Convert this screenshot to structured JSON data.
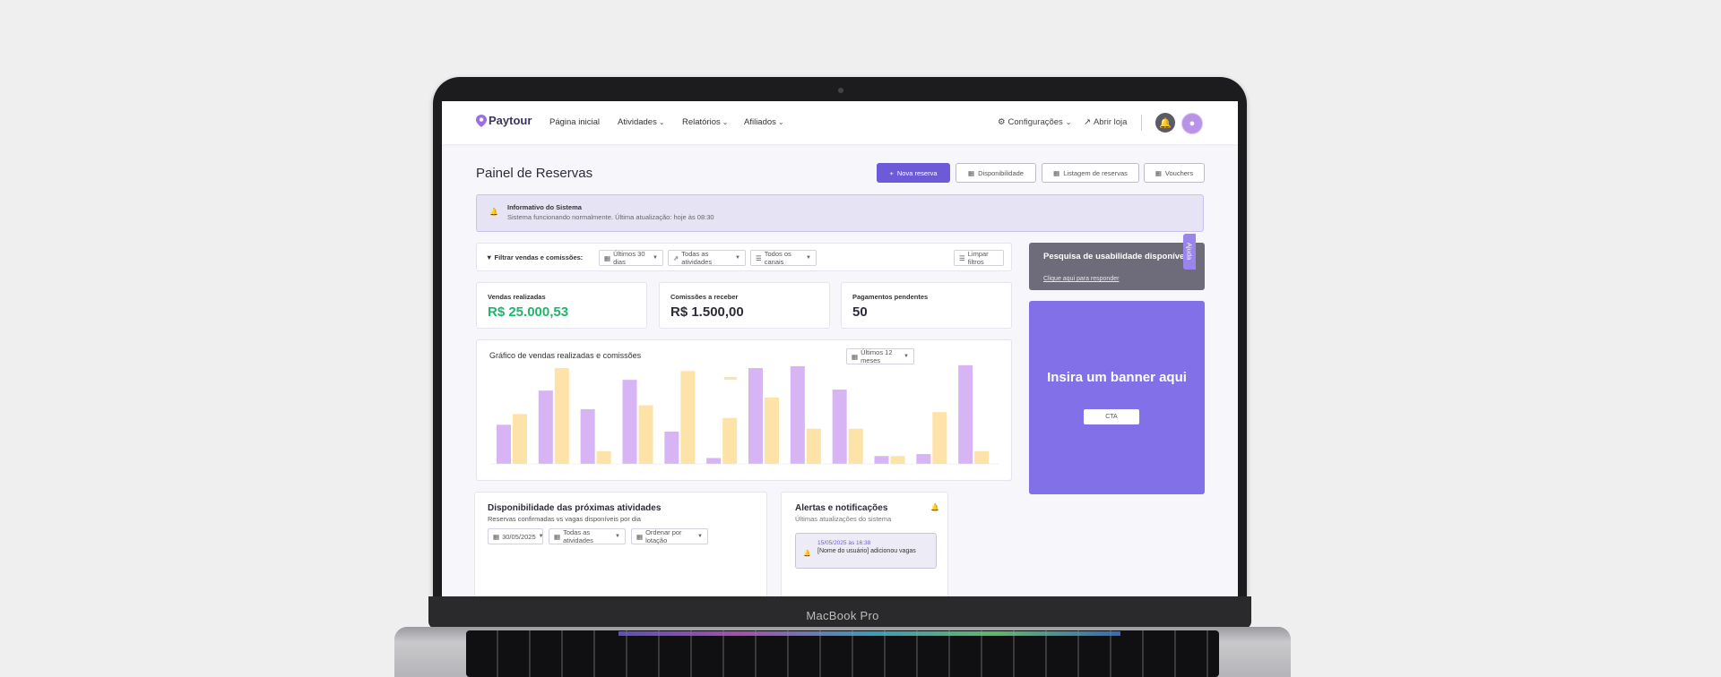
{
  "device": {
    "brand_label": "MacBook Pro"
  },
  "nav": {
    "logo": "Paytour",
    "items": [
      "Página inicial",
      "Atividades",
      "Relatórios",
      "Afiliados"
    ],
    "settings": "Configurações",
    "open_store": "Abrir loja"
  },
  "page": {
    "title": "Painel de Reservas",
    "buttons": {
      "new_reservation": "Nova reserva",
      "availability": "Disponibilidade",
      "reservation_list": "Listagem de reservas",
      "vouchers": "Vouchers"
    }
  },
  "info": {
    "title": "Informativo do Sistema",
    "text": "Sistema funcionando normalmente. Última atualização: hoje às 08:30"
  },
  "filters": {
    "label": "Filtrar vendas e comissões:",
    "period": "Últimos 30 dias",
    "activities": "Todas as atividades",
    "channels": "Todos os canais",
    "clear": "Limpar filtros"
  },
  "stats": [
    {
      "label": "Vendas realizadas",
      "value": "R$ 25.000,53"
    },
    {
      "label": "Comissões a receber",
      "value": "R$ 1.500,00"
    },
    {
      "label": "Pagamentos pendentes",
      "value": "50"
    }
  ],
  "chart_card": {
    "title": "Gráfico de vendas realizadas e comissões",
    "period": "Últimos 12 meses"
  },
  "chart_data": {
    "type": "bar",
    "title": "",
    "categories": [
      "",
      "",
      "",
      "",
      "",
      "",
      "",
      "",
      "",
      "",
      "",
      ""
    ],
    "series": [
      {
        "values": [
          40,
          75,
          56,
          86,
          33,
          6,
          98,
          100,
          76,
          8,
          10,
          101
        ]
      },
      {
        "values": [
          51,
          98,
          13,
          60,
          95,
          47,
          68,
          36,
          36,
          8,
          53,
          13
        ]
      }
    ],
    "ylim": [
      0,
      110
    ],
    "colors": [
      "#d7b4f3",
      "#fde3a7"
    ]
  },
  "survey": {
    "title": "Pesquisa de usabilidade disponível",
    "link": "Clique aqui para responder"
  },
  "banner": {
    "text": "Insira um banner aqui",
    "cta": "CTA"
  },
  "help": {
    "label": "Ajuda"
  },
  "availability": {
    "title": "Disponibilidade das próximas atividades",
    "subtitle": "Reservas confirmadas vs vagas disponíveis por dia",
    "date": "30/05/2025",
    "activities": "Todas as atividades",
    "order": "Ordenar por lotação"
  },
  "alerts": {
    "title": "Alertas e notificações",
    "subtitle": "Últimas atualizações do sistema",
    "items": [
      {
        "date": "15/05/2025 às 16:38",
        "text": "[Nome do usuário] adicionou vagas"
      }
    ]
  }
}
